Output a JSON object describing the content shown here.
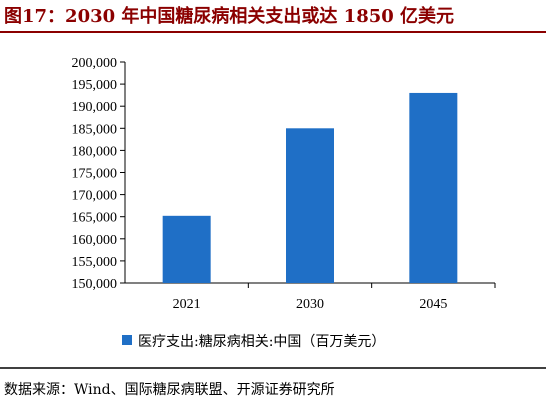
{
  "figure": {
    "title": "图17：2030 年中国糖尿病相关支出或达 1850 亿美元",
    "source": "数据来源：Wind、国际糖尿病联盟、开源证券研究所"
  },
  "colors": {
    "title": "#8B0000",
    "bar": "#1F6FC6",
    "rule": "#8B0000",
    "axis": "#000000"
  },
  "chart_data": {
    "type": "bar",
    "title": "",
    "xlabel": "",
    "ylabel": "",
    "categories": [
      "2021",
      "2030",
      "2045"
    ],
    "series": [
      {
        "name": "医疗支出:糖尿病相关:中国（百万美元）",
        "values": [
          165200,
          185000,
          193000
        ]
      }
    ],
    "ylim": [
      150000,
      200000
    ],
    "yticks": [
      150000,
      155000,
      160000,
      165000,
      170000,
      175000,
      180000,
      185000,
      190000,
      195000,
      200000
    ],
    "ytick_labels": [
      "150,000",
      "155,000",
      "160,000",
      "165,000",
      "170,000",
      "175,000",
      "180,000",
      "185,000",
      "190,000",
      "195,000",
      "200,000"
    ],
    "grid": false,
    "legend": "bottom"
  }
}
